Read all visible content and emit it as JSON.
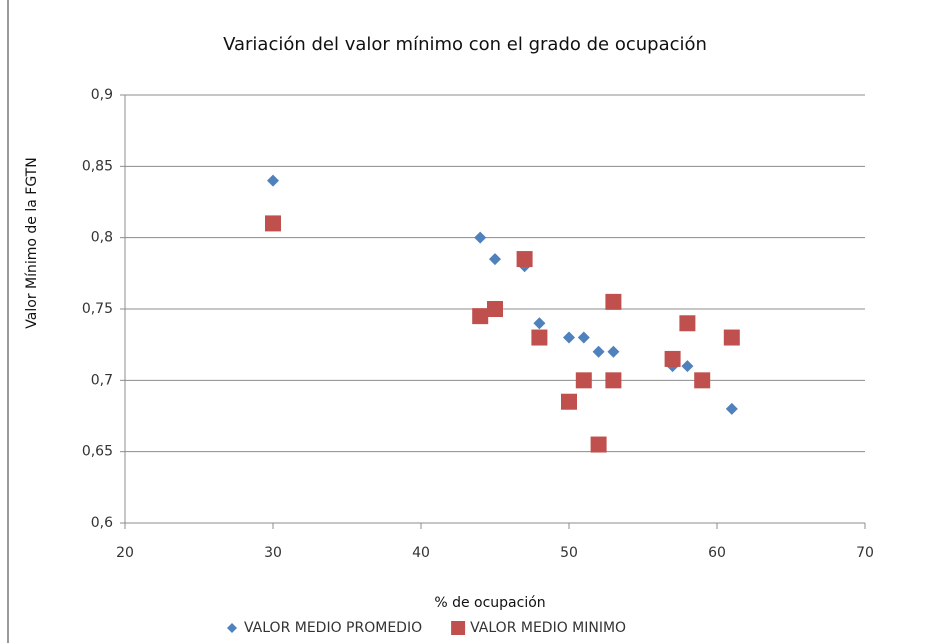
{
  "chart_data": {
    "type": "scatter",
    "title": "Variación del valor mínimo con el grado de ocupación",
    "x_label": "% de ocupación",
    "y_label": "Valor Mínimo de la FGTN",
    "xlim": [
      20,
      70
    ],
    "xticks": [
      20,
      30,
      40,
      50,
      60,
      70
    ],
    "ylim": [
      0.6,
      0.9
    ],
    "yticks": [
      {
        "value": 0.6,
        "label": "0,6"
      },
      {
        "value": 0.65,
        "label": "0,65"
      },
      {
        "value": 0.7,
        "label": "0,7"
      },
      {
        "value": 0.75,
        "label": "0,75"
      },
      {
        "value": 0.8,
        "label": "0,8"
      },
      {
        "value": 0.85,
        "label": "0,85"
      },
      {
        "value": 0.9,
        "label": "0,9"
      }
    ],
    "grid": true,
    "legend": "bottom",
    "series": [
      {
        "name": "VALOR MEDIO PROMEDIO",
        "color": "#4f81bd",
        "marker": "diamond",
        "x": [
          30,
          44,
          45,
          47,
          48,
          50,
          51,
          52,
          53,
          57,
          58,
          61
        ],
        "values": [
          0.84,
          0.8,
          0.785,
          0.78,
          0.74,
          0.73,
          0.73,
          0.72,
          0.72,
          0.71,
          0.71,
          0.68
        ]
      },
      {
        "name": "VALOR MEDIO MINIMO",
        "color": "#c0504d",
        "marker": "square",
        "x": [
          30,
          44,
          45,
          47,
          48,
          50,
          51,
          52,
          53,
          53,
          57,
          58,
          59,
          61
        ],
        "values": [
          0.81,
          0.745,
          0.75,
          0.785,
          0.73,
          0.685,
          0.7,
          0.655,
          0.755,
          0.7,
          0.715,
          0.74,
          0.7,
          0.73
        ]
      }
    ]
  }
}
